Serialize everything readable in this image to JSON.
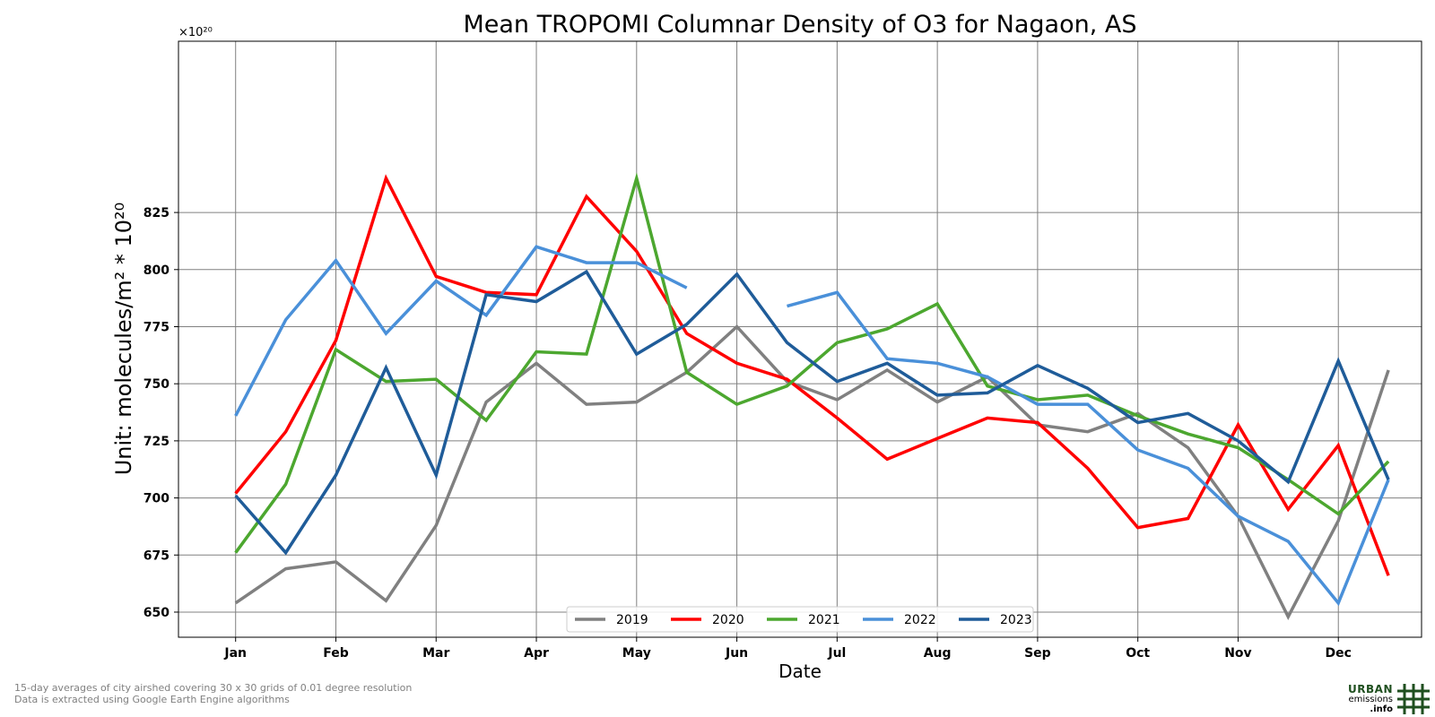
{
  "chart_data": {
    "type": "line",
    "title": "Mean TROPOMI Columnar Density of O3 for Nagaon, AS",
    "xlabel": "Date",
    "ylabel": "Unit: molecules/m² * 10²⁰",
    "y_offset_label": "×10²⁰",
    "ylim": [
      639,
      900
    ],
    "xlim": [
      -0.57,
      11.83
    ],
    "yticks": [
      650,
      675,
      700,
      725,
      750,
      775,
      800,
      825
    ],
    "xticks": [
      {
        "label": "Jan",
        "pos": 0
      },
      {
        "label": "Feb",
        "pos": 1
      },
      {
        "label": "Mar",
        "pos": 2
      },
      {
        "label": "Apr",
        "pos": 3
      },
      {
        "label": "May",
        "pos": 4
      },
      {
        "label": "Jun",
        "pos": 5
      },
      {
        "label": "Jul",
        "pos": 6
      },
      {
        "label": "Aug",
        "pos": 7
      },
      {
        "label": "Sep",
        "pos": 8
      },
      {
        "label": "Oct",
        "pos": 9
      },
      {
        "label": "Nov",
        "pos": 10
      },
      {
        "label": "Dec",
        "pos": 11
      }
    ],
    "x": [
      0,
      0.5,
      1,
      1.5,
      2,
      2.5,
      3,
      3.5,
      4,
      4.5,
      5,
      5.5,
      6,
      6.5,
      7,
      7.5,
      8,
      8.5,
      9,
      9.5,
      10,
      10.5,
      11,
      11.5
    ],
    "grid": true,
    "legend_position": "bottom-center",
    "series": [
      {
        "name": "2019",
        "color": "#808080",
        "values": [
          654,
          669,
          672,
          655,
          688,
          742,
          759,
          741,
          742,
          755,
          775,
          751,
          743,
          756,
          742,
          753,
          732,
          729,
          737,
          722,
          692,
          648,
          690,
          756
        ]
      },
      {
        "name": "2020",
        "color": "#ff0000",
        "values": [
          702,
          729,
          769,
          840,
          797,
          790,
          789,
          832,
          808,
          772,
          759,
          752,
          735,
          717,
          726,
          735,
          733,
          713,
          687,
          691,
          732,
          695,
          723,
          666
        ]
      },
      {
        "name": "2021",
        "color": "#4ca72f",
        "values": [
          676,
          706,
          765,
          751,
          752,
          734,
          764,
          763,
          840,
          755,
          741,
          749,
          768,
          774,
          785,
          749,
          743,
          745,
          736,
          728,
          722,
          708,
          693,
          716
        ]
      },
      {
        "name": "2022",
        "color": "#4a90d9",
        "values": [
          736,
          778,
          804,
          772,
          795,
          780,
          810,
          803,
          803,
          792,
          null,
          784,
          790,
          761,
          759,
          753,
          741,
          741,
          721,
          713,
          692,
          681,
          654,
          708
        ]
      },
      {
        "name": "2023",
        "color": "#1f5c99",
        "values": [
          701,
          676,
          710,
          757,
          710,
          789,
          786,
          799,
          763,
          776,
          798,
          768,
          751,
          759,
          745,
          746,
          758,
          748,
          733,
          737,
          725,
          707,
          760,
          708
        ]
      }
    ]
  },
  "footnote": {
    "line1": "15-day averages of city airshed covering 30 x 30 grids of 0.01 degree resolution",
    "line2": "Data is extracted using Google Earth Engine algorithms"
  },
  "logo": {
    "word1": "URBAN",
    "word2": "emissions",
    "word3": ".info",
    "color": "#1f4f1f"
  }
}
